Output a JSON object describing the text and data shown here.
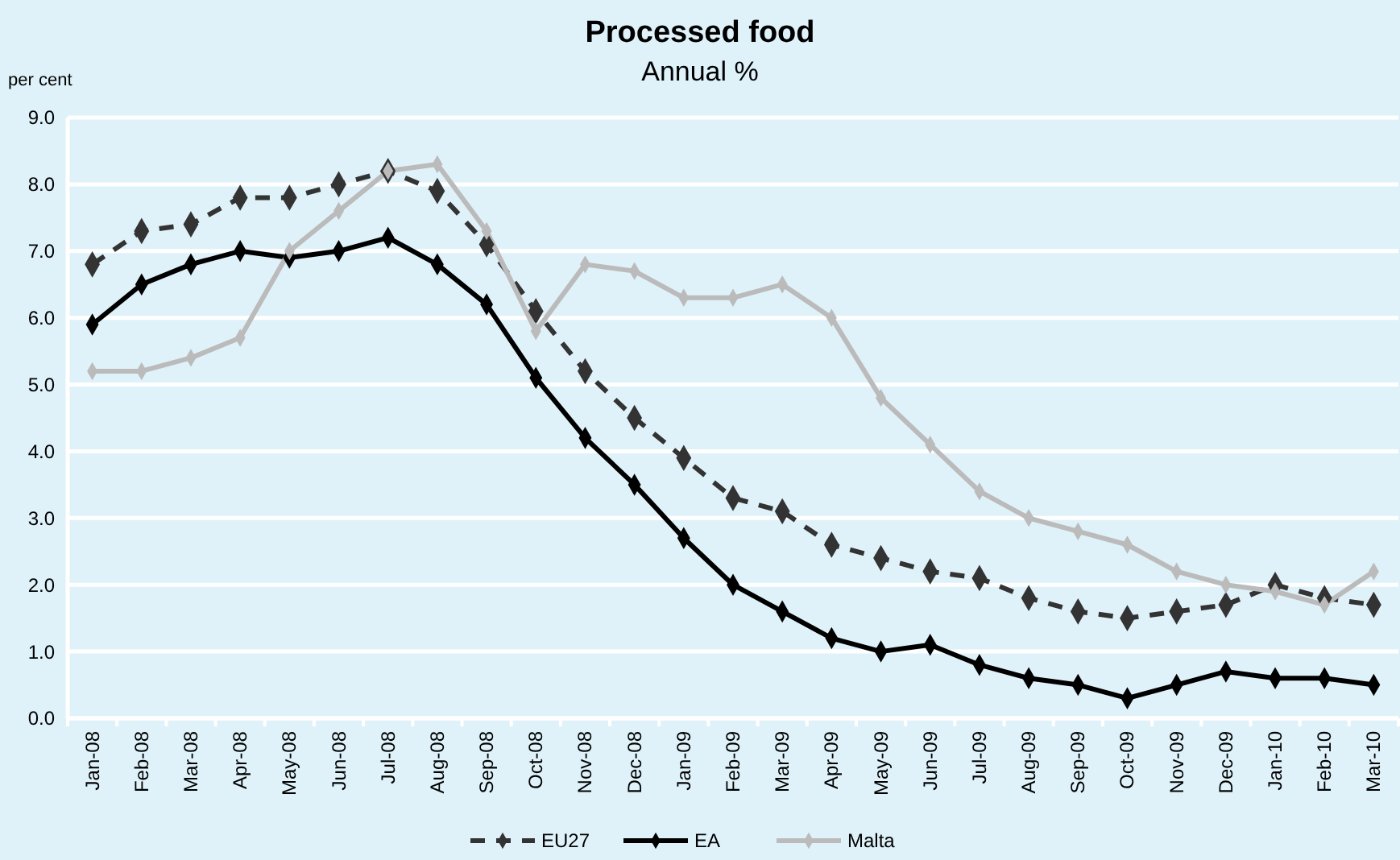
{
  "chart_data": {
    "type": "line",
    "title": "Processed food",
    "subtitle": "Annual %",
    "ylabel": "per cent",
    "categories": [
      "Jan-08",
      "Feb-08",
      "Mar-08",
      "Apr-08",
      "May-08",
      "Jun-08",
      "Jul-08",
      "Aug-08",
      "Sep-08",
      "Oct-08",
      "Nov-08",
      "Dec-08",
      "Jan-09",
      "Feb-09",
      "Mar-09",
      "Apr-09",
      "May-09",
      "Jun-09",
      "Jul-09",
      "Aug-09",
      "Sep-09",
      "Oct-09",
      "Nov-09",
      "Dec-09",
      "Jan-10",
      "Feb-10",
      "Mar-10"
    ],
    "series": [
      {
        "name": "EU27",
        "color": "#333333",
        "line_style": "dashed",
        "values": [
          6.8,
          7.3,
          7.4,
          7.8,
          7.8,
          8.0,
          8.2,
          7.9,
          7.1,
          6.1,
          5.2,
          4.5,
          3.9,
          3.3,
          3.1,
          2.6,
          2.4,
          2.2,
          2.1,
          1.8,
          1.6,
          1.5,
          1.6,
          1.7,
          2.0,
          1.8,
          1.7
        ]
      },
      {
        "name": "EA",
        "color": "#000000",
        "line_style": "solid",
        "values": [
          5.9,
          6.5,
          6.8,
          7.0,
          6.9,
          7.0,
          7.2,
          6.8,
          6.2,
          5.1,
          4.2,
          3.5,
          2.7,
          2.0,
          1.6,
          1.2,
          1.0,
          1.1,
          0.8,
          0.6,
          0.5,
          0.3,
          0.5,
          0.7,
          0.6,
          0.6,
          0.5
        ]
      },
      {
        "name": "Malta",
        "color": "#bbbbbb",
        "line_style": "solid",
        "values": [
          5.2,
          5.2,
          5.4,
          5.7,
          7.0,
          7.6,
          8.2,
          8.3,
          7.3,
          5.8,
          6.8,
          6.7,
          6.3,
          6.3,
          6.5,
          6.0,
          4.8,
          4.1,
          3.4,
          3.0,
          2.8,
          2.6,
          2.2,
          2.0,
          1.9,
          1.7,
          2.2
        ]
      }
    ],
    "ylim": [
      0,
      9
    ],
    "yticks": [
      {
        "value": 0,
        "label": "0.0"
      },
      {
        "value": 1,
        "label": "1.0"
      },
      {
        "value": 2,
        "label": "2.0"
      },
      {
        "value": 3,
        "label": "3.0"
      },
      {
        "value": 4,
        "label": "4.0"
      },
      {
        "value": 5,
        "label": "5.0"
      },
      {
        "value": 6,
        "label": "6.0"
      },
      {
        "value": 7,
        "label": "7.0"
      },
      {
        "value": 8,
        "label": "8.0"
      },
      {
        "value": 9,
        "label": "9.0"
      }
    ],
    "grid": "y",
    "legend": "bottom",
    "marker": "diamond"
  }
}
